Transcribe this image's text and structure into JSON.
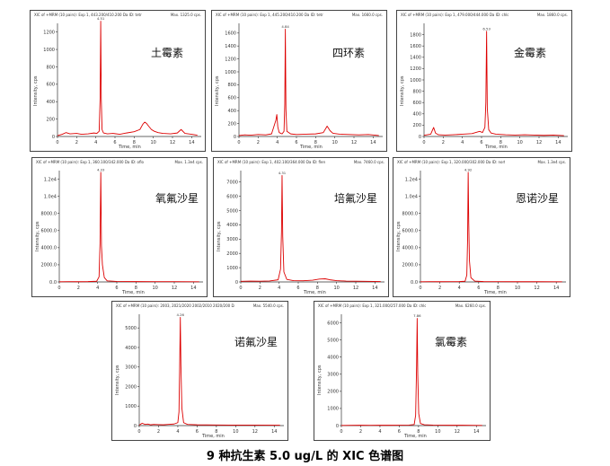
{
  "caption": "9 种抗生素 5.0 ug/L 的 XIC 色谱图",
  "chart_data": [
    {
      "type": "line",
      "header_left": "XIC of +MRM (10 pairs): Exp 1, 443.200/410.200 Da ID: tetracycli...",
      "header_right": "Max. 1325.0 cps.",
      "compound": "土霉素",
      "xlabel": "Time, min",
      "ylabel": "Intensity, cps",
      "xlim": [
        0,
        15
      ],
      "ylim": [
        0,
        1300
      ],
      "yticks": [
        0,
        200,
        400,
        600,
        800,
        1000,
        1200
      ],
      "ytick_labels": [
        "0",
        "200",
        "400",
        "600",
        "800",
        "1000",
        "1200"
      ],
      "xticks": [
        0,
        2,
        4,
        6,
        8,
        10,
        12,
        14
      ],
      "xtick_labels": [
        "0",
        "2",
        "4",
        "6",
        "8",
        "10",
        "12",
        "14"
      ],
      "peak_label": "4.51",
      "peak_rt": 4.51,
      "x": [
        0,
        0.5,
        0.9,
        1.3,
        2.0,
        2.5,
        3.2,
        3.8,
        4.1,
        4.35,
        4.45,
        4.51,
        4.57,
        4.65,
        4.8,
        5.2,
        5.8,
        6.5,
        7.2,
        8.0,
        8.6,
        8.9,
        9.1,
        9.3,
        9.5,
        9.8,
        10.1,
        10.5,
        11.0,
        11.8,
        12.5,
        12.9,
        13.3,
        14.0,
        14.6
      ],
      "y": [
        10,
        25,
        45,
        30,
        35,
        25,
        30,
        40,
        35,
        60,
        450,
        1325,
        420,
        80,
        40,
        30,
        35,
        25,
        40,
        55,
        80,
        140,
        165,
        150,
        120,
        80,
        60,
        45,
        35,
        30,
        40,
        80,
        35,
        25,
        15
      ]
    },
    {
      "type": "line",
      "header_left": "XIC of +MRM (10 pairs): Exp 1, 445.200/410.200 Da ID: tetracycl...",
      "header_right": "Max. 1660.0 cps.",
      "compound": "四环素",
      "xlabel": "Time, min",
      "ylabel": "Intensity, cps",
      "xlim": [
        0,
        15
      ],
      "ylim": [
        0,
        1750
      ],
      "yticks": [
        0,
        200,
        400,
        600,
        800,
        1000,
        1200,
        1400,
        1600
      ],
      "ytick_labels": [
        "0",
        "200",
        "400",
        "600",
        "800",
        "1000",
        "1200",
        "1400",
        "1600"
      ],
      "xticks": [
        0,
        2,
        4,
        6,
        8,
        10,
        12,
        14
      ],
      "xtick_labels": [
        "0",
        "2",
        "4",
        "6",
        "8",
        "10",
        "12",
        "14"
      ],
      "peak_label": "4.84",
      "peak_rt": 4.84,
      "x": [
        0,
        0.6,
        1.2,
        2.0,
        2.8,
        3.4,
        3.85,
        3.95,
        4.05,
        4.2,
        4.5,
        4.7,
        4.78,
        4.84,
        4.9,
        5.0,
        5.4,
        6.0,
        7.0,
        8.0,
        8.8,
        9.2,
        9.5,
        9.8,
        10.5,
        11.5,
        12.5,
        13.5,
        14.6
      ],
      "y": [
        15,
        25,
        20,
        30,
        25,
        40,
        250,
        340,
        150,
        60,
        40,
        80,
        500,
        1660,
        420,
        80,
        40,
        30,
        35,
        40,
        60,
        160,
        90,
        50,
        35,
        30,
        25,
        30,
        15
      ]
    },
    {
      "type": "line",
      "header_left": "XIC of +MRM (10 pairs): Exp 1, 479.000/444.000 Da ID: chlortetr...",
      "header_right": "Max. 1860.0 cps.",
      "compound": "金霉素",
      "xlabel": "Time, min",
      "ylabel": "Intensity, cps",
      "xlim": [
        0,
        15
      ],
      "ylim": [
        0,
        2000
      ],
      "yticks": [
        0,
        200,
        400,
        600,
        800,
        1000,
        1200,
        1400,
        1600,
        1800
      ],
      "ytick_labels": [
        "0",
        "200",
        "400",
        "600",
        "800",
        "1000",
        "1200",
        "1400",
        "1600",
        "1800"
      ],
      "xticks": [
        0,
        2,
        4,
        6,
        8,
        10,
        12,
        14
      ],
      "xtick_labels": [
        "0",
        "2",
        "4",
        "6",
        "8",
        "10",
        "12",
        "14"
      ],
      "peak_label": "6.53",
      "peak_rt": 6.53,
      "x": [
        0,
        0.7,
        1.0,
        1.2,
        1.5,
        2.2,
        3.0,
        4.0,
        5.0,
        5.8,
        6.1,
        6.35,
        6.45,
        6.53,
        6.6,
        6.75,
        7.0,
        7.5,
        8.5,
        9.5,
        10.5,
        11.5,
        12.5,
        13.5,
        14.6
      ],
      "y": [
        20,
        40,
        160,
        60,
        30,
        25,
        30,
        40,
        50,
        90,
        70,
        160,
        600,
        1860,
        500,
        120,
        60,
        40,
        30,
        25,
        30,
        25,
        20,
        25,
        15
      ]
    },
    {
      "type": "line",
      "header_left": "XIC of +MRM (10 pairs): Exp 1, 360.100/342.000 Da ID: ofloxacin...",
      "header_right": "Max. 1.3e4 cps.",
      "compound": "氧氟沙星",
      "xlabel": "Time, min",
      "ylabel": "Intensity, cps",
      "xlim": [
        0,
        15
      ],
      "ylim": [
        0,
        13000
      ],
      "yticks": [
        0,
        2000,
        4000,
        6000,
        8000,
        10000,
        12000
      ],
      "ytick_labels": [
        "0.0",
        "2000.0",
        "4000.0",
        "6000.0",
        "8000.0",
        "1.0e4",
        "1.2e4"
      ],
      "xticks": [
        0,
        2,
        4,
        6,
        8,
        10,
        12,
        14
      ],
      "xtick_labels": [
        "0",
        "2",
        "4",
        "6",
        "8",
        "10",
        "12",
        "14"
      ],
      "peak_label": "4.33",
      "peak_rt": 4.33,
      "x": [
        0,
        1.0,
        2.0,
        3.0,
        3.9,
        4.15,
        4.25,
        4.33,
        4.4,
        4.5,
        4.7,
        5.0,
        6.0,
        8.0,
        10.0,
        12.0,
        14.6
      ],
      "y": [
        20,
        30,
        25,
        40,
        80,
        600,
        4500,
        12800,
        4200,
        2000,
        500,
        120,
        60,
        40,
        30,
        30,
        20
      ]
    },
    {
      "type": "line",
      "header_left": "XIC of +MRM (10 pairs): Exp 1, 402.100/364.000 Da ID: fleroxac...",
      "header_right": "Max. 7460.0 cps.",
      "compound": "培氟沙星",
      "xlabel": "Time, min",
      "ylabel": "Intensity, cps",
      "xlim": [
        0,
        15
      ],
      "ylim": [
        0,
        7800
      ],
      "yticks": [
        0,
        1000,
        2000,
        3000,
        4000,
        5000,
        6000,
        7000
      ],
      "ytick_labels": [
        "0",
        "1000",
        "2000",
        "3000",
        "4000",
        "5000",
        "6000",
        "7000"
      ],
      "xticks": [
        0,
        2,
        4,
        6,
        8,
        10,
        12,
        14
      ],
      "xtick_labels": [
        "0",
        "2",
        "4",
        "6",
        "8",
        "10",
        "12",
        "14"
      ],
      "peak_label": "4.31",
      "peak_rt": 4.31,
      "x": [
        0,
        1.0,
        2.0,
        3.0,
        3.9,
        4.15,
        4.25,
        4.31,
        4.38,
        4.5,
        4.8,
        5.5,
        6.5,
        7.5,
        8.2,
        8.8,
        9.3,
        10.0,
        11.0,
        12.0,
        13.0,
        14.6
      ],
      "y": [
        40,
        60,
        50,
        70,
        150,
        900,
        3500,
        7460,
        3200,
        700,
        180,
        90,
        80,
        120,
        200,
        220,
        150,
        90,
        60,
        50,
        40,
        30
      ]
    },
    {
      "type": "line",
      "header_left": "XIC of +MRM (10 pairs): Exp 1, 320.000/302.000 Da ID: norfloxa...",
      "header_right": "Max. 1.3e4 cps.",
      "compound": "恩诺沙星",
      "xlabel": "Time, min",
      "ylabel": "Intensity, cps",
      "xlim": [
        0,
        15
      ],
      "ylim": [
        0,
        13000
      ],
      "yticks": [
        0,
        2000,
        4000,
        6000,
        8000,
        10000,
        12000
      ],
      "ytick_labels": [
        "0.0",
        "2000.0",
        "4000.0",
        "6000.0",
        "8000.0",
        "1.0e4",
        "1.2e4"
      ],
      "xticks": [
        0,
        2,
        4,
        6,
        8,
        10,
        12,
        14
      ],
      "xtick_labels": [
        "0",
        "2",
        "4",
        "6",
        "8",
        "10",
        "12",
        "14"
      ],
      "peak_label": "4.92",
      "peak_rt": 4.92,
      "x": [
        0,
        1.0,
        2.0,
        3.0,
        4.0,
        4.6,
        4.78,
        4.86,
        4.92,
        4.98,
        5.05,
        5.2,
        5.6,
        6.5,
        8.0,
        10.0,
        12.0,
        14.6
      ],
      "y": [
        20,
        30,
        25,
        30,
        40,
        80,
        800,
        5000,
        12800,
        6800,
        2500,
        500,
        100,
        40,
        30,
        25,
        25,
        20
      ]
    },
    {
      "type": "line",
      "header_left": "XIC of +MRM (10 pairs): 2003, 2021/2020 2002/2010 2020/200 Da ID: norflo...",
      "header_right": "Max. 5540.0 cps.",
      "compound": "诺氟沙星",
      "xlabel": "Time, min",
      "ylabel": "Intensity, cps",
      "xlim": [
        0,
        15
      ],
      "ylim": [
        0,
        5700
      ],
      "yticks": [
        0,
        1000,
        2000,
        3000,
        4000,
        5000
      ],
      "ytick_labels": [
        "0",
        "1000",
        "2000",
        "3000",
        "4000",
        "5000"
      ],
      "xticks": [
        0,
        2,
        4,
        6,
        8,
        10,
        12,
        14
      ],
      "xtick_labels": [
        "0",
        "2",
        "4",
        "6",
        "8",
        "10",
        "12",
        "14"
      ],
      "peak_label": "4.26",
      "peak_rt": 4.26,
      "x": [
        0,
        0.3,
        0.6,
        0.9,
        1.2,
        1.5,
        2.0,
        2.5,
        3.0,
        3.6,
        4.0,
        4.12,
        4.2,
        4.26,
        4.32,
        4.42,
        4.6,
        5.0,
        6.0,
        8.0,
        10.0,
        12.0,
        14.6
      ],
      "y": [
        20,
        120,
        60,
        80,
        40,
        60,
        50,
        40,
        60,
        80,
        150,
        700,
        3300,
        5540,
        3100,
        900,
        150,
        60,
        40,
        30,
        25,
        25,
        20
      ]
    },
    {
      "type": "line",
      "header_left": "XIC of +MRM (10 pairs): Exp 1, 321.000/257.000 Da ID: chloramph...",
      "header_right": "Max. 6260.0 cps.",
      "compound": "氯霉素",
      "xlabel": "Time, min",
      "ylabel": "Intensity, cps",
      "xlim": [
        0,
        15
      ],
      "ylim": [
        0,
        6500
      ],
      "yticks": [
        0,
        1000,
        2000,
        3000,
        4000,
        5000,
        6000
      ],
      "ytick_labels": [
        "0",
        "1000",
        "2000",
        "3000",
        "4000",
        "5000",
        "6000"
      ],
      "xticks": [
        0,
        2,
        4,
        6,
        8,
        10,
        12,
        14
      ],
      "xtick_labels": [
        "0",
        "2",
        "4",
        "6",
        "8",
        "10",
        "12",
        "14"
      ],
      "peak_label": "7.86",
      "peak_rt": 7.86,
      "x": [
        0,
        1.0,
        2.0,
        3.0,
        4.0,
        5.0,
        6.0,
        7.0,
        7.55,
        7.7,
        7.8,
        7.86,
        7.92,
        8.02,
        8.2,
        8.6,
        9.5,
        10.5,
        11.5,
        12.5,
        13.5,
        14.6
      ],
      "y": [
        10,
        15,
        20,
        15,
        25,
        20,
        25,
        30,
        60,
        600,
        3500,
        6260,
        3000,
        700,
        120,
        50,
        30,
        25,
        20,
        20,
        15,
        10
      ]
    }
  ]
}
